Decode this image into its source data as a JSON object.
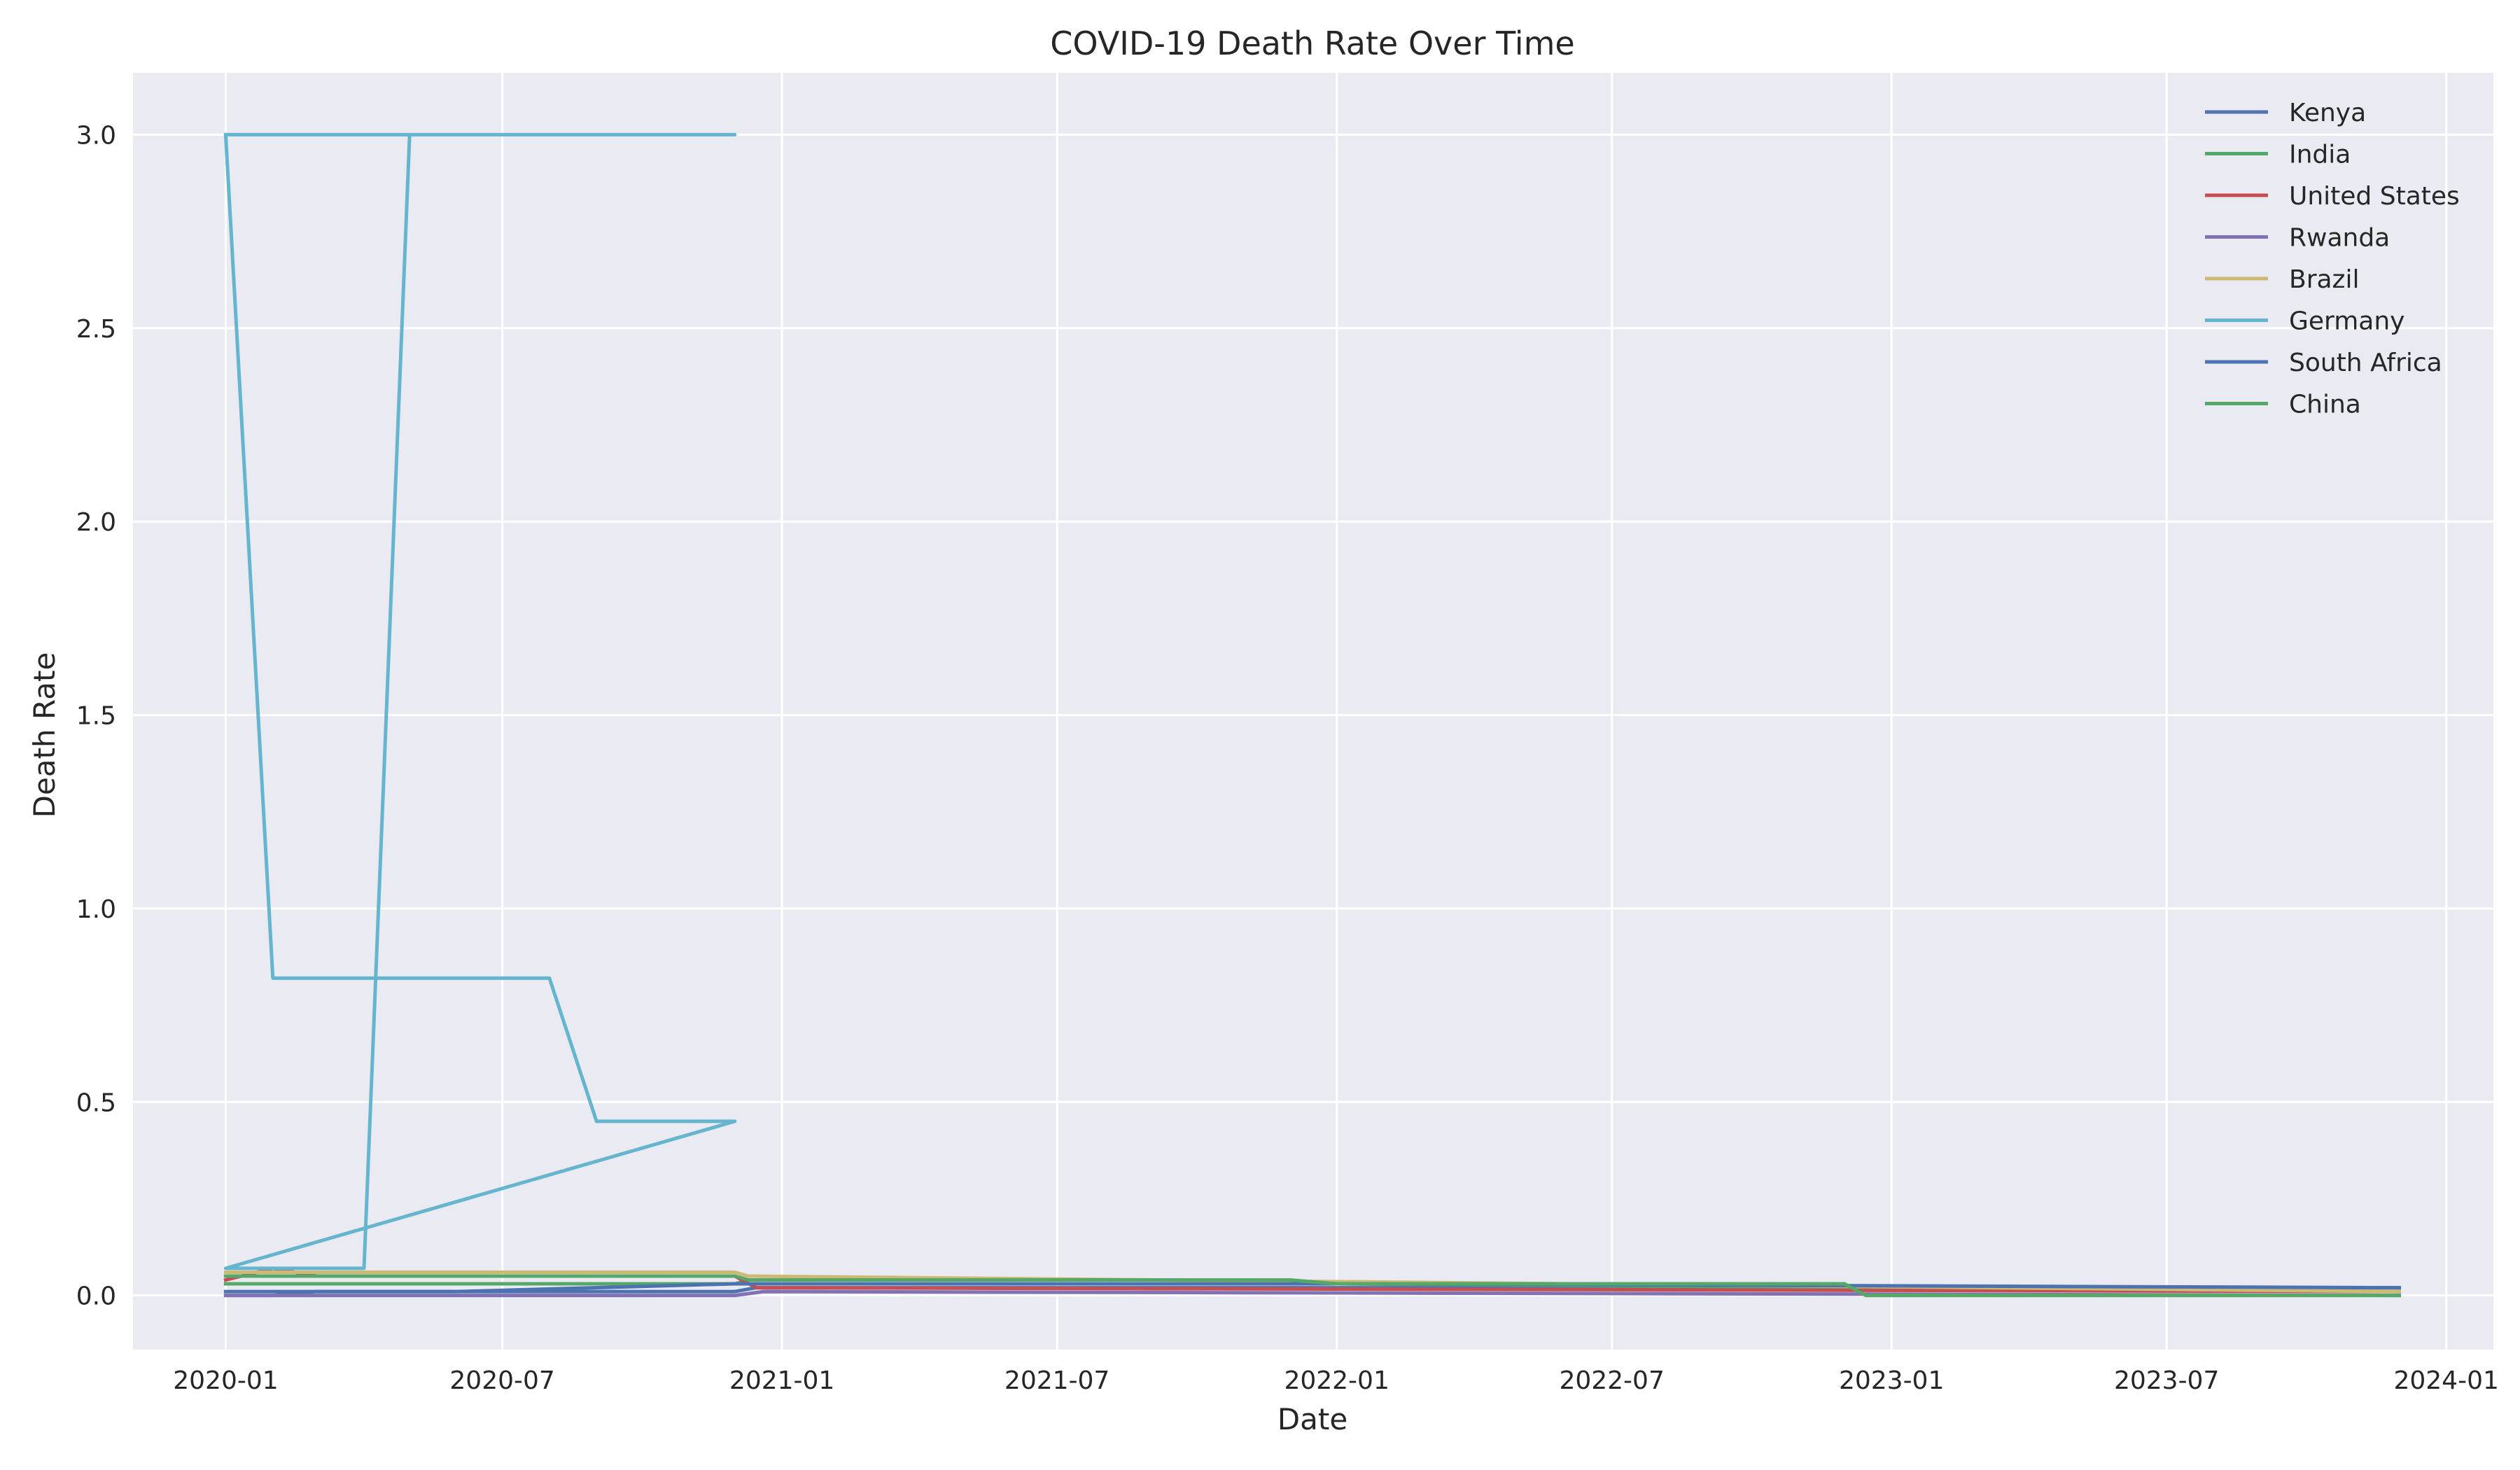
{
  "chart_data": {
    "type": "line",
    "title": "COVID-19 Death Rate Over Time",
    "xlabel": "Date",
    "ylabel": "Death Rate",
    "xlim": [
      "2019-11-01",
      "2024-02-01"
    ],
    "ylim": [
      -0.14,
      3.16
    ],
    "x_ticks": [
      "2020-01",
      "2020-07",
      "2021-01",
      "2021-07",
      "2022-01",
      "2022-07",
      "2023-01",
      "2023-07",
      "2024-01"
    ],
    "x_tick_dates": [
      "2020-01-01",
      "2020-07-01",
      "2021-01-01",
      "2021-07-01",
      "2022-01-01",
      "2022-07-01",
      "2023-01-01",
      "2023-07-01",
      "2024-01-01"
    ],
    "y_ticks": [
      0.0,
      0.5,
      1.0,
      1.5,
      2.0,
      2.5,
      3.0
    ],
    "y_tick_labels": [
      "0.0",
      "0.5",
      "1.0",
      "1.5",
      "2.0",
      "2.5",
      "3.0"
    ],
    "grid": true,
    "legend_position": "top-right",
    "series": [
      {
        "name": "Kenya",
        "color": "#4c72b0",
        "points": [
          [
            "2020-01-01",
            0.0
          ],
          [
            "2020-02-01",
            0.0
          ],
          [
            "2020-02-29",
            0.01
          ],
          [
            "2020-12-01",
            0.01
          ],
          [
            "2020-12-15",
            0.02
          ],
          [
            "2021-11-30",
            0.02
          ],
          [
            "2023-12-01",
            0.02
          ]
        ]
      },
      {
        "name": "India",
        "color": "#55a868",
        "points": [
          [
            "2020-01-01",
            0.03
          ],
          [
            "2020-12-01",
            0.03
          ],
          [
            "2020-12-10",
            0.04
          ],
          [
            "2021-11-30",
            0.04
          ],
          [
            "2022-01-01",
            0.03
          ],
          [
            "2023-12-01",
            0.01
          ]
        ]
      },
      {
        "name": "United States",
        "color": "#c44e52",
        "points": [
          [
            "2020-01-01",
            0.04
          ],
          [
            "2020-02-01",
            0.07
          ],
          [
            "2020-03-01",
            0.05
          ],
          [
            "2020-12-01",
            0.05
          ],
          [
            "2020-12-15",
            0.02
          ],
          [
            "2023-12-01",
            0.01
          ]
        ]
      },
      {
        "name": "Rwanda",
        "color": "#8172b3",
        "points": [
          [
            "2020-01-01",
            0.0
          ],
          [
            "2020-12-01",
            0.0
          ],
          [
            "2020-12-20",
            0.01
          ],
          [
            "2023-12-01",
            0.0
          ]
        ]
      },
      {
        "name": "Brazil",
        "color": "#ccb974",
        "points": [
          [
            "2020-01-01",
            0.06
          ],
          [
            "2020-07-01",
            0.06
          ],
          [
            "2020-12-01",
            0.06
          ],
          [
            "2020-12-10",
            0.05
          ],
          [
            "2023-12-01",
            0.01
          ]
        ]
      },
      {
        "name": "Germany",
        "color": "#64b5cd",
        "points": [
          [
            "2020-01-01",
            3.0
          ],
          [
            "2020-02-01",
            0.82
          ],
          [
            "2020-08-01",
            0.82
          ],
          [
            "2020-09-01",
            0.45
          ],
          [
            "2020-12-01",
            0.45
          ],
          [
            "2020-01-01",
            0.07
          ],
          [
            "2020-04-01",
            0.07
          ],
          [
            "2020-05-01",
            3.0
          ],
          [
            "2020-12-01",
            3.0
          ],
          [
            "2020-01-01",
            3.0
          ]
        ]
      },
      {
        "name": "South Africa",
        "color": "#4c72b0",
        "points": [
          [
            "2020-01-01",
            0.01
          ],
          [
            "2020-06-01",
            0.01
          ],
          [
            "2020-12-01",
            0.03
          ],
          [
            "2022-01-01",
            0.03
          ],
          [
            "2023-12-01",
            0.02
          ]
        ]
      },
      {
        "name": "China",
        "color": "#55a868",
        "points": [
          [
            "2020-01-01",
            0.05
          ],
          [
            "2020-12-01",
            0.05
          ],
          [
            "2020-12-10",
            0.04
          ],
          [
            "2021-12-01",
            0.04
          ],
          [
            "2022-01-01",
            0.03
          ],
          [
            "2022-12-01",
            0.03
          ],
          [
            "2022-12-15",
            0.0
          ],
          [
            "2023-12-01",
            0.0
          ]
        ]
      }
    ]
  }
}
